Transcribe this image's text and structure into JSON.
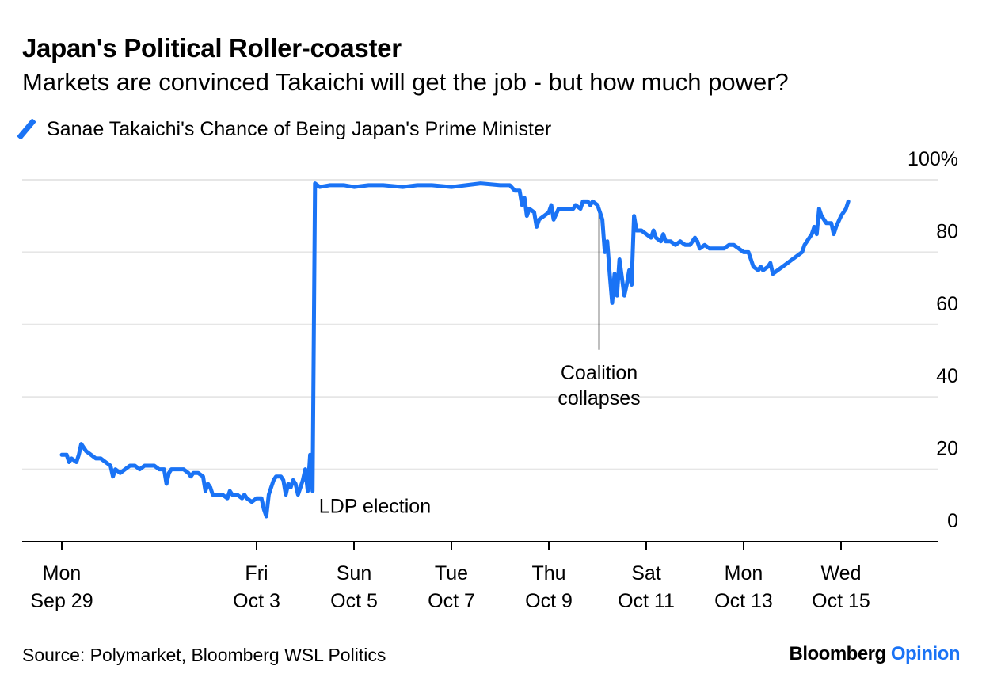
{
  "title": "Japan's Political Roller-coaster",
  "subtitle": "Markets are convinced Takaichi will get the job - but how much power?",
  "source": "Source: Polymarket, Bloomberg WSL Politics",
  "brand": {
    "name": "Bloomberg",
    "section": "Opinion"
  },
  "colors": {
    "line": "#1a73f5",
    "grid": "#e6e6e6",
    "axis": "#000000"
  },
  "chart_data": {
    "type": "line",
    "series": [
      {
        "name": "Sanae Takaichi's Chance of Being Japan's Prime Minister"
      }
    ],
    "ylim": [
      0,
      100
    ],
    "y_ticks": [
      {
        "value": 100,
        "label": "100%"
      },
      {
        "value": 80,
        "label": "80"
      },
      {
        "value": 60,
        "label": "60"
      },
      {
        "value": 40,
        "label": "40"
      },
      {
        "value": 20,
        "label": "20"
      },
      {
        "value": 0,
        "label": "0"
      }
    ],
    "xlim": [
      0,
      17
    ],
    "x_ticks": [
      {
        "value": 0,
        "line1": "Mon",
        "line2": "Sep 29"
      },
      {
        "value": 4,
        "line1": "Fri",
        "line2": "Oct 3"
      },
      {
        "value": 6,
        "line1": "Sun",
        "line2": "Oct 5"
      },
      {
        "value": 8,
        "line1": "Tue",
        "line2": "Oct 7"
      },
      {
        "value": 10,
        "line1": "Thu",
        "line2": "Oct 9"
      },
      {
        "value": 12,
        "line1": "Sat",
        "line2": "Oct 11"
      },
      {
        "value": 14,
        "line1": "Mon",
        "line2": "Oct 13"
      },
      {
        "value": 16,
        "line1": "Wed",
        "line2": "Oct 15"
      }
    ],
    "x_unit": "days since Mon Sep 29",
    "points": [
      [
        0.0,
        24
      ],
      [
        0.1,
        24
      ],
      [
        0.15,
        22
      ],
      [
        0.2,
        23
      ],
      [
        0.3,
        22
      ],
      [
        0.35,
        24
      ],
      [
        0.4,
        27
      ],
      [
        0.5,
        25
      ],
      [
        0.6,
        24
      ],
      [
        0.7,
        23
      ],
      [
        0.8,
        23
      ],
      [
        0.9,
        22
      ],
      [
        1.0,
        21
      ],
      [
        1.05,
        18
      ],
      [
        1.1,
        20
      ],
      [
        1.2,
        19
      ],
      [
        1.3,
        20
      ],
      [
        1.4,
        21
      ],
      [
        1.5,
        21
      ],
      [
        1.6,
        20
      ],
      [
        1.7,
        21
      ],
      [
        1.8,
        21
      ],
      [
        1.9,
        21
      ],
      [
        2.0,
        20
      ],
      [
        2.1,
        20
      ],
      [
        2.15,
        16
      ],
      [
        2.2,
        19
      ],
      [
        2.25,
        20
      ],
      [
        2.35,
        20
      ],
      [
        2.5,
        20
      ],
      [
        2.6,
        19
      ],
      [
        2.65,
        18
      ],
      [
        2.7,
        19
      ],
      [
        2.8,
        19
      ],
      [
        2.9,
        18
      ],
      [
        2.95,
        14
      ],
      [
        3.0,
        16
      ],
      [
        3.05,
        15
      ],
      [
        3.1,
        13
      ],
      [
        3.2,
        13
      ],
      [
        3.3,
        13
      ],
      [
        3.4,
        12
      ],
      [
        3.45,
        14
      ],
      [
        3.5,
        13
      ],
      [
        3.6,
        13
      ],
      [
        3.7,
        12
      ],
      [
        3.75,
        13
      ],
      [
        3.8,
        12
      ],
      [
        3.9,
        11
      ],
      [
        4.0,
        12
      ],
      [
        4.1,
        12
      ],
      [
        4.15,
        9
      ],
      [
        4.2,
        7
      ],
      [
        4.25,
        13
      ],
      [
        4.3,
        15
      ],
      [
        4.35,
        17
      ],
      [
        4.4,
        18
      ],
      [
        4.5,
        18
      ],
      [
        4.55,
        17
      ],
      [
        4.6,
        13
      ],
      [
        4.65,
        16
      ],
      [
        4.7,
        15
      ],
      [
        4.75,
        17
      ],
      [
        4.8,
        16
      ],
      [
        4.85,
        13
      ],
      [
        4.9,
        15
      ],
      [
        4.95,
        17
      ],
      [
        5.0,
        20
      ],
      [
        5.05,
        14
      ],
      [
        5.1,
        24
      ],
      [
        5.15,
        14
      ],
      [
        5.2,
        99
      ],
      [
        5.3,
        98
      ],
      [
        5.5,
        98.5
      ],
      [
        5.8,
        98.5
      ],
      [
        6.0,
        98
      ],
      [
        6.3,
        98.5
      ],
      [
        6.6,
        98.5
      ],
      [
        7.0,
        98
      ],
      [
        7.3,
        98.5
      ],
      [
        7.6,
        98.5
      ],
      [
        8.0,
        98
      ],
      [
        8.3,
        98.5
      ],
      [
        8.6,
        99
      ],
      [
        9.0,
        98.5
      ],
      [
        9.2,
        98.5
      ],
      [
        9.3,
        97
      ],
      [
        9.4,
        97
      ],
      [
        9.45,
        93
      ],
      [
        9.5,
        95
      ],
      [
        9.55,
        90
      ],
      [
        9.6,
        92
      ],
      [
        9.7,
        91
      ],
      [
        9.75,
        87
      ],
      [
        9.8,
        89
      ],
      [
        9.9,
        90
      ],
      [
        10.0,
        91
      ],
      [
        10.05,
        93
      ],
      [
        10.1,
        89
      ],
      [
        10.2,
        92
      ],
      [
        10.3,
        92
      ],
      [
        10.4,
        92
      ],
      [
        10.5,
        92
      ],
      [
        10.55,
        93
      ],
      [
        10.65,
        92
      ],
      [
        10.7,
        94
      ],
      [
        10.8,
        94
      ],
      [
        10.85,
        93
      ],
      [
        10.9,
        94
      ],
      [
        11.0,
        93
      ],
      [
        11.05,
        91
      ],
      [
        11.1,
        89
      ],
      [
        11.15,
        80
      ],
      [
        11.2,
        83
      ],
      [
        11.25,
        74
      ],
      [
        11.3,
        66
      ],
      [
        11.35,
        74
      ],
      [
        11.4,
        68
      ],
      [
        11.45,
        78
      ],
      [
        11.5,
        73
      ],
      [
        11.55,
        68
      ],
      [
        11.6,
        71
      ],
      [
        11.65,
        75
      ],
      [
        11.7,
        71
      ],
      [
        11.75,
        90
      ],
      [
        11.8,
        86
      ],
      [
        11.9,
        86
      ],
      [
        12.0,
        85
      ],
      [
        12.1,
        84
      ],
      [
        12.15,
        86
      ],
      [
        12.2,
        84
      ],
      [
        12.3,
        83
      ],
      [
        12.35,
        85
      ],
      [
        12.4,
        83
      ],
      [
        12.5,
        83
      ],
      [
        12.6,
        82
      ],
      [
        12.7,
        83
      ],
      [
        12.8,
        82
      ],
      [
        12.9,
        82
      ],
      [
        13.0,
        84
      ],
      [
        13.05,
        83
      ],
      [
        13.1,
        81
      ],
      [
        13.2,
        82
      ],
      [
        13.3,
        81
      ],
      [
        13.4,
        81
      ],
      [
        13.5,
        81
      ],
      [
        13.6,
        81
      ],
      [
        13.7,
        82
      ],
      [
        13.8,
        82
      ],
      [
        13.9,
        81
      ],
      [
        14.0,
        80
      ],
      [
        14.1,
        80
      ],
      [
        14.15,
        78
      ],
      [
        14.2,
        76
      ],
      [
        14.3,
        75
      ],
      [
        14.35,
        76
      ],
      [
        14.4,
        75
      ],
      [
        14.5,
        76
      ],
      [
        14.55,
        77
      ],
      [
        14.6,
        74
      ],
      [
        14.7,
        75
      ],
      [
        14.8,
        76
      ],
      [
        14.9,
        77
      ],
      [
        15.0,
        78
      ],
      [
        15.1,
        79
      ],
      [
        15.2,
        80
      ],
      [
        15.25,
        82
      ],
      [
        15.3,
        83
      ],
      [
        15.4,
        85
      ],
      [
        15.45,
        87
      ],
      [
        15.5,
        85
      ],
      [
        15.55,
        92
      ],
      [
        15.6,
        90
      ],
      [
        15.7,
        88
      ],
      [
        15.8,
        88
      ],
      [
        15.85,
        85
      ],
      [
        15.9,
        87
      ],
      [
        16.0,
        90
      ],
      [
        16.1,
        92
      ],
      [
        16.15,
        94
      ]
    ],
    "annotations": [
      {
        "x": 5.2,
        "y": 10,
        "lines": [
          "LDP election"
        ]
      },
      {
        "x": 11.0,
        "y": 44,
        "lines": [
          "Coalition",
          "collapses"
        ],
        "leader_from": 93,
        "leader_to": 53
      }
    ]
  }
}
